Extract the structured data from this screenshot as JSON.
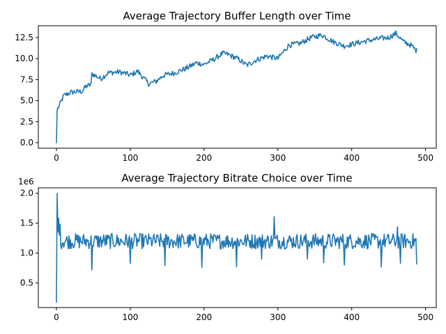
{
  "chart_data": [
    {
      "type": "line",
      "title": "Average Trajectory Buffer Length over Time",
      "xlabel": "",
      "ylabel": "",
      "xlim": [
        -24.5,
        514.5
      ],
      "ylim": [
        -0.66,
        13.9
      ],
      "xticks": [
        0,
        100,
        200,
        300,
        400,
        500
      ],
      "xtick_labels": [
        "0",
        "100",
        "200",
        "300",
        "400",
        "500"
      ],
      "yticks": [
        0,
        2.5,
        5,
        7.5,
        10,
        12.5
      ],
      "ytick_labels": [
        "0.0",
        "2.5",
        "5.0",
        "7.5",
        "10.0",
        "12.5"
      ],
      "grid": false,
      "legend": "none",
      "color": "#1f77b4",
      "trend_points": [
        [
          0,
          0.0
        ],
        [
          1,
          3.9
        ],
        [
          5,
          4.6
        ],
        [
          10,
          5.6
        ],
        [
          20,
          6.0
        ],
        [
          35,
          6.1
        ],
        [
          40,
          6.7
        ],
        [
          47,
          6.9
        ],
        [
          48,
          8.2
        ],
        [
          60,
          7.6
        ],
        [
          70,
          8.3
        ],
        [
          85,
          8.4
        ],
        [
          95,
          8.2
        ],
        [
          100,
          8.0
        ],
        [
          110,
          8.5
        ],
        [
          125,
          7.0
        ],
        [
          135,
          7.3
        ],
        [
          145,
          8.0
        ],
        [
          160,
          8.3
        ],
        [
          175,
          8.8
        ],
        [
          190,
          9.5
        ],
        [
          200,
          9.3
        ],
        [
          215,
          10.0
        ],
        [
          225,
          10.6
        ],
        [
          232,
          10.5
        ],
        [
          245,
          10.0
        ],
        [
          258,
          9.2
        ],
        [
          270,
          9.8
        ],
        [
          285,
          10.3
        ],
        [
          300,
          10.0
        ],
        [
          315,
          11.6
        ],
        [
          330,
          11.8
        ],
        [
          345,
          12.5
        ],
        [
          360,
          12.8
        ],
        [
          375,
          12.0
        ],
        [
          390,
          11.5
        ],
        [
          400,
          11.7
        ],
        [
          420,
          12.1
        ],
        [
          440,
          12.4
        ],
        [
          450,
          12.5
        ],
        [
          460,
          13.0
        ],
        [
          470,
          12.0
        ],
        [
          480,
          11.6
        ],
        [
          488,
          10.9
        ]
      ],
      "noise_amplitude": 0.32,
      "n_points": 489
    },
    {
      "type": "line",
      "title": "Average Trajectory Bitrate Choice over Time",
      "xlabel": "",
      "ylabel": "",
      "offset_text": "1e6",
      "xlim": [
        -24.5,
        514.5
      ],
      "ylim": [
        90000,
        2090000
      ],
      "xticks": [
        0,
        100,
        200,
        300,
        400,
        500
      ],
      "xtick_labels": [
        "0",
        "100",
        "200",
        "300",
        "400",
        "500"
      ],
      "yticks": [
        500000,
        1000000,
        1500000,
        2000000
      ],
      "ytick_labels": [
        "0.5",
        "1.0",
        "1.5",
        "2.0"
      ],
      "grid": false,
      "legend": "none",
      "color": "#1f77b4",
      "values_head": [
        180000,
        2000000,
        1350000,
        1580000,
        1300000,
        1480000
      ],
      "baseline": 1200000,
      "noise_amplitude": 130000,
      "spikes": [
        [
          48,
          720000
        ],
        [
          100,
          830000
        ],
        [
          147,
          790000
        ],
        [
          197,
          760000
        ],
        [
          244,
          770000
        ],
        [
          278,
          900000
        ],
        [
          295,
          1610000
        ],
        [
          340,
          900000
        ],
        [
          362,
          840000
        ],
        [
          390,
          800000
        ],
        [
          440,
          770000
        ],
        [
          462,
          1440000
        ],
        [
          466,
          830000
        ],
        [
          488,
          820000
        ]
      ],
      "n_points": 489
    }
  ]
}
